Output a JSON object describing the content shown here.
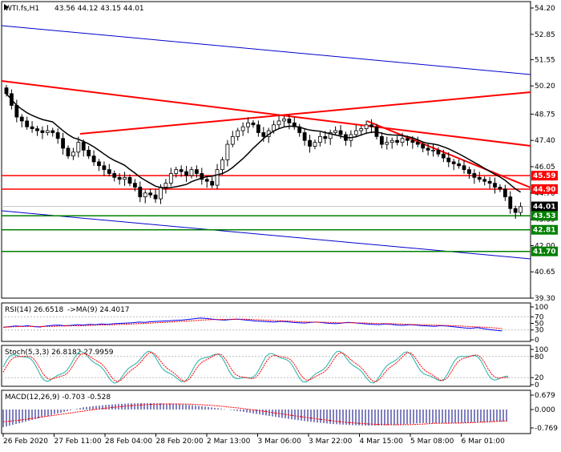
{
  "colors": {
    "background": "#ffffff",
    "candle": "#000000",
    "trend_red": "#ff0000",
    "channel_blue": "#0000cc",
    "support_green": "#008000",
    "rsi_line": "#0000ff",
    "signal_red": "#ff0000",
    "stoch_main": "#20b2aa",
    "macd_hist": "#000080"
  },
  "chart_data": {
    "type": "candlestick",
    "title": "WTI.fs,H1",
    "ohlc": {
      "open": "43.56",
      "high": "44.12",
      "low": "43.15",
      "close": "44.01"
    },
    "y_ticks": [
      "54.20",
      "52.85",
      "51.55",
      "50.20",
      "48.75",
      "47.40",
      "46.05",
      "44.70",
      "43.35",
      "42.00",
      "40.65",
      "39.30"
    ],
    "ylim": [
      39.3,
      54.2
    ],
    "x_ticks": [
      "26 Feb 2020",
      "27 Feb 11:00",
      "28 Feb 04:00",
      "28 Feb 20:00",
      "2 Mar 13:00",
      "3 Mar 06:00",
      "3 Mar 22:00",
      "4 Mar 15:00",
      "5 Mar 08:00",
      "6 Mar 01:00"
    ],
    "price_labels": [
      {
        "value": 45.59,
        "text": "45.59",
        "bg": "#ff0000",
        "fg": "#ffffff"
      },
      {
        "value": 44.9,
        "text": "44.90",
        "bg": "#ff0000",
        "fg": "#ffffff"
      },
      {
        "value": 44.01,
        "text": "44.01",
        "bg": "#000000",
        "fg": "#ffffff"
      },
      {
        "value": 43.53,
        "text": "43.53",
        "bg": "#008000",
        "fg": "#ffffff"
      },
      {
        "value": 42.81,
        "text": "42.81",
        "bg": "#008000",
        "fg": "#ffffff"
      },
      {
        "value": 41.7,
        "text": "41.70",
        "bg": "#008000",
        "fg": "#ffffff"
      }
    ],
    "moving_average": "black",
    "closes": [
      49.8,
      49.2,
      48.6,
      48.4,
      48.1,
      48.0,
      47.9,
      47.8,
      47.9,
      47.8,
      47.5,
      47.0,
      46.6,
      46.8,
      47.3,
      46.9,
      46.6,
      46.3,
      46.1,
      45.9,
      45.7,
      45.5,
      45.4,
      45.5,
      45.2,
      45.0,
      44.5,
      44.7,
      44.6,
      44.4,
      45.0,
      45.2,
      45.7,
      45.9,
      45.8,
      45.6,
      45.9,
      45.7,
      45.4,
      45.3,
      45.1,
      45.9,
      46.4,
      47.2,
      47.6,
      47.9,
      48.1,
      48.3,
      48.2,
      47.8,
      47.6,
      47.9,
      48.2,
      48.4,
      48.5,
      48.3,
      48.1,
      47.8,
      47.4,
      47.1,
      47.3,
      47.6,
      47.5,
      47.8,
      47.9,
      47.7,
      47.4,
      47.7,
      47.9,
      48.0,
      48.2,
      48.1,
      47.6,
      47.2,
      47.3,
      47.4,
      47.3,
      47.5,
      47.4,
      47.3,
      47.2,
      47.0,
      46.9,
      46.9,
      46.7,
      46.5,
      46.3,
      46.2,
      46.1,
      45.9,
      45.7,
      45.5,
      45.4,
      45.3,
      45.2,
      45.0,
      44.9,
      44.5,
      43.9,
      43.7,
      44.0
    ]
  },
  "rsi": {
    "label": "RSI(14) 26.6518",
    "ma_label": "->MA(9) 24.4017",
    "ticks": [
      "100",
      "70",
      "50",
      "30",
      "0"
    ],
    "values": [
      38,
      40,
      42,
      41,
      43,
      40,
      39,
      42,
      44,
      45,
      43,
      44,
      46,
      45,
      47,
      46,
      48,
      47,
      49,
      50,
      51,
      52,
      54,
      53,
      55,
      56,
      57,
      58,
      59,
      60,
      62,
      64,
      66,
      65,
      63,
      61,
      60,
      62,
      63,
      61,
      59,
      57,
      56,
      55,
      54,
      56,
      55,
      53,
      52,
      51,
      53,
      54,
      52,
      50,
      49,
      51,
      53,
      52,
      50,
      48,
      47,
      46,
      48,
      47,
      45,
      44,
      46,
      45,
      43,
      42,
      41,
      43,
      42,
      40,
      38,
      36,
      35,
      37,
      34,
      31,
      29,
      27
    ]
  },
  "stoch": {
    "label": "Stoch(5,3,3) 26.8182 27.9959",
    "ticks": [
      "100",
      "80",
      "20",
      "0"
    ]
  },
  "macd": {
    "label": "MACD(12,26,9) -0.703 -0.528",
    "ticks": [
      "0.679",
      "0.000",
      "-0.769"
    ]
  }
}
